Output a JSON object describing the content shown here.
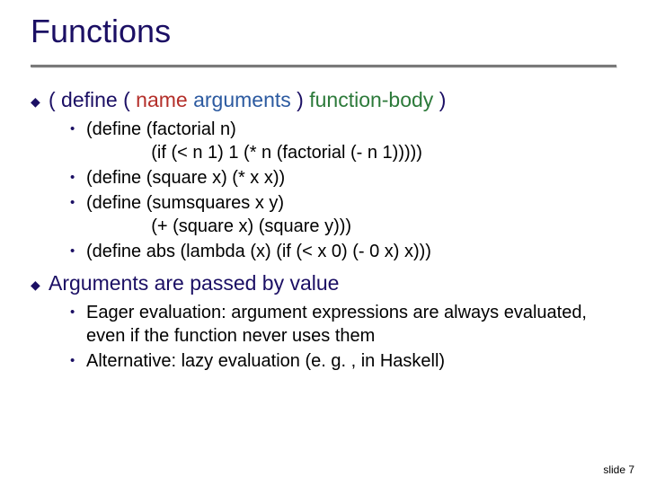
{
  "title": "Functions",
  "syntax_line": {
    "pre": "( define ( ",
    "name": "name",
    "sep1": "  ",
    "args": "arguments",
    "mid": " ) ",
    "body": "function-body",
    "post": " )"
  },
  "codes": [
    "(define (factorial n)\n             (if (< n 1) 1 (* n (factorial (- n 1)))))",
    "(define (square x) (* x x))",
    "(define (sumsquares x y)\n             (+ (square x) (square y)))",
    "(define abs (lambda (x) (if (< x 0) (- 0 x) x)))"
  ],
  "args_heading": "Arguments are passed by value",
  "arg_bullets": [
    "Eager evaluation: argument expressions are always evaluated, even if the function never uses them",
    "Alternative: lazy evaluation (e. g. , in Haskell)"
  ],
  "footer": "slide 7",
  "colors": {
    "title": "#1b0f64",
    "name": "#b42f2a",
    "args": "#2c5aa0",
    "body": "#2c7a3a",
    "rule": "#7a7a7a",
    "text": "#000000",
    "bg": "#ffffff"
  }
}
